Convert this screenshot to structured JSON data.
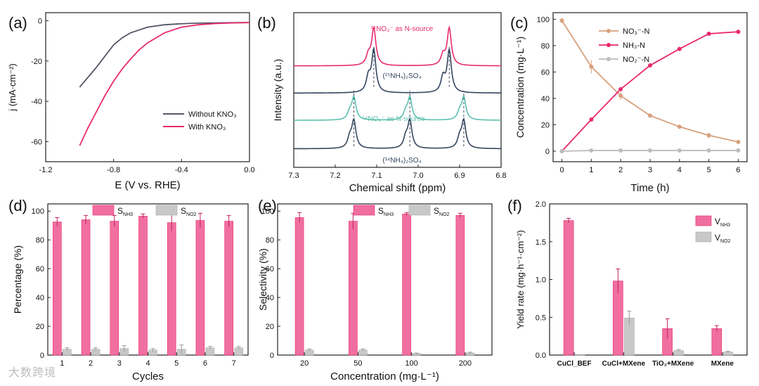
{
  "colors": {
    "pink": "#e8296f",
    "pinkFill": "#f06fa0",
    "gray": "#555566",
    "lightgray": "#bdbdbd",
    "teal": "#5cbfae",
    "tan": "#d8a07c",
    "navy": "#34465e"
  },
  "watermark": "大数跨境",
  "chart_data": [
    {
      "panel": "(a)",
      "type": "line",
      "xlabel": "E (V vs. RHE)",
      "ylabel": "j (mA·cm⁻²)",
      "xlim": [
        -1.2,
        0.0
      ],
      "ylim": [
        -70,
        4
      ],
      "xticks": [
        "-1.2",
        "-0.8",
        "-0.4",
        "0.0"
      ],
      "xtick_values": [
        -1.2,
        -0.8,
        -0.4,
        0.0
      ],
      "yticks": [
        "0",
        "-20",
        "-40",
        "-60"
      ],
      "ytick_values": [
        0,
        -20,
        -40,
        -60
      ],
      "legend": [
        "Without KNO₃",
        "With KNO₃"
      ],
      "series": [
        {
          "name": "Without KNO3",
          "color": "#555566",
          "x": [
            -1.0,
            -0.9,
            -0.85,
            -0.8,
            -0.75,
            -0.7,
            -0.6,
            -0.5,
            -0.4,
            -0.3,
            -0.2,
            -0.1,
            0.0
          ],
          "y": [
            -33,
            -23,
            -17.5,
            -12,
            -8.5,
            -6,
            -3.2,
            -2,
            -1.5,
            -1.2,
            -1.1,
            -1.0,
            -0.9
          ]
        },
        {
          "name": "With KNO3",
          "color": "#e8296f",
          "x": [
            -1.0,
            -0.95,
            -0.9,
            -0.85,
            -0.8,
            -0.75,
            -0.7,
            -0.65,
            -0.6,
            -0.5,
            -0.4,
            -0.3,
            -0.2,
            -0.1,
            0.0
          ],
          "y": [
            -62,
            -53,
            -45,
            -37,
            -30,
            -24,
            -19,
            -14.5,
            -11,
            -6,
            -3.2,
            -2,
            -1.4,
            -1.1,
            -0.9
          ]
        }
      ]
    },
    {
      "panel": "(b)",
      "type": "line",
      "xlabel": "Chemical shift (ppm)",
      "ylabel": "Intensity (a.u.)",
      "xlim": [
        7.3,
        6.8
      ],
      "xticks": [
        "7.3",
        "7.2",
        "7.1",
        "7.0",
        "6.9",
        "6.8"
      ],
      "xtick_values": [
        7.3,
        7.2,
        7.1,
        7.0,
        6.9,
        6.8
      ],
      "series": [
        {
          "name": "15NO3 as N-source",
          "label": "¹⁵NO₃⁻ as N-source",
          "color": "#e8296f",
          "baseline": 0.82,
          "peaks": [
            [
              7.107,
              0.3
            ],
            [
              7.12,
              0.08
            ],
            [
              6.925,
              0.3
            ],
            [
              6.94,
              0.08
            ]
          ]
        },
        {
          "name": "(15NH4)2SO4",
          "label": "(¹⁵NH₄)₂SO₄",
          "color": "#34465e",
          "baseline": 0.6,
          "peaks": [
            [
              7.107,
              0.34
            ],
            [
              7.12,
              0.12
            ],
            [
              6.925,
              0.34
            ],
            [
              6.94,
              0.12
            ]
          ]
        },
        {
          "name": "14NO3 as N-source",
          "label": "¹⁴NO₃⁻ as N-source",
          "color": "#5cbfae",
          "baseline": 0.38,
          "peaks": [
            [
              7.155,
              0.18
            ],
            [
              7.165,
              0.06
            ],
            [
              7.02,
              0.18
            ],
            [
              7.03,
              0.06
            ],
            [
              6.89,
              0.18
            ],
            [
              6.9,
              0.06
            ]
          ]
        },
        {
          "name": "(14NH4)2SO4",
          "label": "(¹⁴NH₄)₂SO₄",
          "color": "#34465e",
          "baseline": 0.15,
          "peaks": [
            [
              7.155,
              0.22
            ],
            [
              7.165,
              0.08
            ],
            [
              7.02,
              0.22
            ],
            [
              7.03,
              0.08
            ],
            [
              6.89,
              0.22
            ],
            [
              6.9,
              0.08
            ]
          ]
        }
      ]
    },
    {
      "panel": "(c)",
      "type": "line",
      "xlabel": "Time (h)",
      "ylabel": "Concentration (mg·L⁻¹)",
      "xlim": [
        -0.3,
        6.3
      ],
      "ylim": [
        -8,
        105
      ],
      "xticks": [
        "0",
        "1",
        "2",
        "3",
        "4",
        "5",
        "6"
      ],
      "xtick_values": [
        0,
        1,
        2,
        3,
        4,
        5,
        6
      ],
      "yticks": [
        "0",
        "20",
        "40",
        "60",
        "80",
        "100"
      ],
      "ytick_values": [
        0,
        20,
        40,
        60,
        80,
        100
      ],
      "legend": [
        "NO₃⁻-N",
        "NH₃-N",
        "NO₂⁻-N"
      ],
      "x": [
        0,
        1,
        2,
        3,
        4,
        5,
        6
      ],
      "series": [
        {
          "name": "NO3-N",
          "color": "#d8a07c",
          "values": [
            99,
            64,
            42,
            27,
            18.5,
            12,
            7
          ],
          "err": [
            2,
            5,
            3,
            1.5,
            1,
            2,
            1
          ]
        },
        {
          "name": "NH3-N",
          "color": "#e8296f",
          "values": [
            0,
            24,
            47,
            65,
            77.5,
            89,
            90.5
          ],
          "err": [
            0,
            1,
            1,
            1,
            1,
            1,
            1
          ]
        },
        {
          "name": "NO2-N",
          "color": "#bdbdbd",
          "values": [
            0,
            0.5,
            0.5,
            0.5,
            0.5,
            0.5,
            0.5
          ],
          "err": [
            0,
            0.3,
            0.3,
            0.3,
            0.3,
            0.3,
            0.3
          ]
        }
      ]
    },
    {
      "panel": "(d)",
      "type": "bar",
      "xlabel": "Cycles",
      "ylabel": "Percentage (%)",
      "ylim": [
        0,
        105
      ],
      "yticks": [
        "0",
        "20",
        "40",
        "60",
        "80",
        "100"
      ],
      "ytick_values": [
        0,
        20,
        40,
        60,
        80,
        100
      ],
      "categories": [
        "1",
        "2",
        "3",
        "4",
        "5",
        "6",
        "7"
      ],
      "legend": [
        "S_NH3",
        "S_NO2"
      ],
      "series": [
        {
          "name": "S NH3",
          "color": "#f06fa0",
          "values": [
            92.5,
            94,
            93,
            96.5,
            92,
            93.5,
            93
          ],
          "err": [
            3,
            3,
            4,
            1.5,
            6,
            5,
            4
          ]
        },
        {
          "name": "S NO2",
          "color": "#c8c8c8",
          "values": [
            4,
            4,
            4.5,
            3.5,
            4,
            5,
            5
          ],
          "err": [
            1,
            1,
            2,
            1,
            3,
            1,
            1
          ]
        }
      ]
    },
    {
      "panel": "(e)",
      "type": "bar",
      "xlabel": "Concentration (mg·L⁻¹)",
      "ylabel": "Selectivity (%)",
      "ylim": [
        0,
        105
      ],
      "yticks": [
        "0",
        "20",
        "40",
        "60",
        "80",
        "100"
      ],
      "ytick_values": [
        0,
        20,
        40,
        60,
        80,
        100
      ],
      "categories": [
        "20",
        "50",
        "100",
        "200"
      ],
      "legend": [
        "S_NH3",
        "S_NO2"
      ],
      "series": [
        {
          "name": "S NH3",
          "color": "#f06fa0",
          "values": [
            95.5,
            93,
            98,
            97
          ],
          "err": [
            3.5,
            5.5,
            1,
            1.5
          ]
        },
        {
          "name": "S NO2",
          "color": "#c8c8c8",
          "values": [
            3.5,
            3.5,
            1,
            1.5
          ],
          "err": [
            0.7,
            0.7,
            0.4,
            0.5
          ]
        }
      ]
    },
    {
      "panel": "(f)",
      "type": "bar",
      "xlabel": "",
      "ylabel": "Yield rate (mg·h⁻¹·cm⁻²)",
      "ylim": [
        0,
        2.0
      ],
      "yticks": [
        "0.0",
        "0.5",
        "1.0",
        "1.5",
        "2.0"
      ],
      "ytick_values": [
        0,
        0.5,
        1.0,
        1.5,
        2.0
      ],
      "categories": [
        "CuCl_BEF",
        "CuCl+MXene",
        "TiO₂+MXene",
        "MXene"
      ],
      "legend": [
        "V_NH3",
        "V_NO2"
      ],
      "series": [
        {
          "name": "V NH3",
          "color": "#f06fa0",
          "values": [
            1.78,
            0.98,
            0.35,
            0.35
          ],
          "err": [
            0.03,
            0.16,
            0.13,
            0.04
          ]
        },
        {
          "name": "V NO2",
          "color": "#c8c8c8",
          "values": [
            0.0,
            0.49,
            0.06,
            0.04
          ],
          "err": [
            0.0,
            0.09,
            0.015,
            0.01
          ]
        }
      ]
    }
  ]
}
